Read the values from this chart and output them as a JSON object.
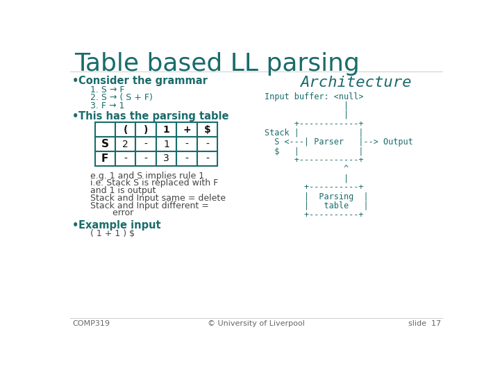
{
  "title": "Table based LL parsing",
  "title_color": "#1a6b6b",
  "title_fontsize": 26,
  "bg_color": "#ffffff",
  "body_color": "#1a6b6b",
  "mono_color": "#1a6b6b",
  "text_color": "#444444",
  "left_col": {
    "bullet1_header": "Consider the grammar",
    "grammar": [
      "1. S → F",
      "2. S → ( S + F)",
      "3. F → 1"
    ],
    "bullet2_header": "This has the parsing table",
    "table_headers": [
      "",
      "(",
      ")",
      "1",
      "+",
      "$"
    ],
    "table_rows": [
      [
        "S",
        "2",
        "-",
        "1",
        "-",
        "-"
      ],
      [
        "F",
        "-",
        "-",
        "3",
        "-",
        "-"
      ]
    ],
    "notes": [
      "e.g. 1 and S implies rule 1",
      "i.e. Stack S is replaced with F",
      "and 1 is output",
      "Stack and Input same = delete",
      "Stack and Input different =",
      "        error"
    ],
    "bullet3_header": "Example input",
    "example": "( 1 + 1 ) $"
  },
  "right_col": {
    "arch_title": "Architecture",
    "arch_lines": [
      "Input buffer: <null>",
      "                |",
      "                |",
      "      +------------+",
      "Stack |            |",
      "  S <---| Parser   |--> Output",
      "  $   |            |",
      "      +------------+",
      "                ^",
      "                |",
      "        +----------+",
      "        |  Parsing  |",
      "        |   table   |",
      "        +----------+"
    ]
  },
  "footer_left": "COMP319",
  "footer_center": "© University of Liverpool",
  "footer_right": "slide  17"
}
